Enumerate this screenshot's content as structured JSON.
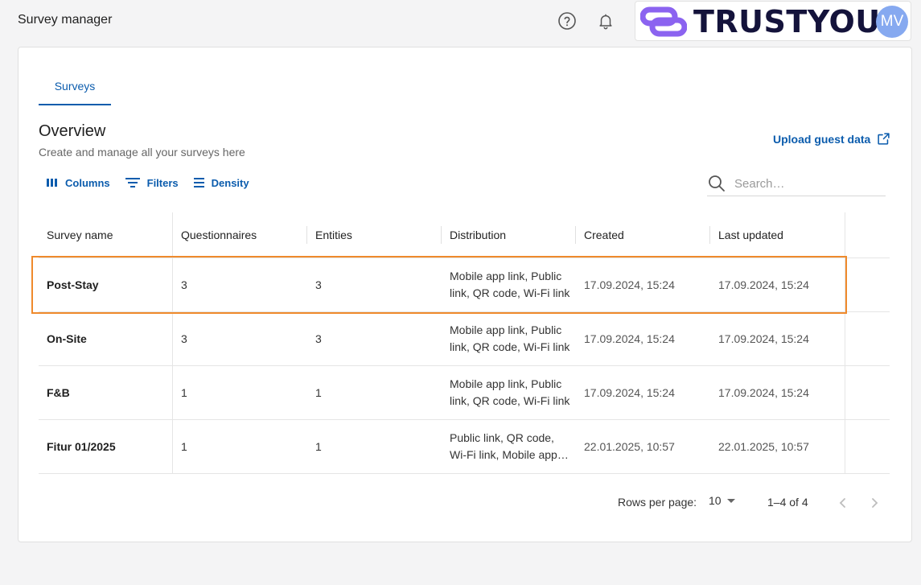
{
  "app": {
    "title": "Survey manager"
  },
  "brand": {
    "name": "TRUSTYOU",
    "avatar_initials": "MV",
    "color": "#8b63f0"
  },
  "tabs": [
    {
      "label": "Surveys",
      "active": true
    }
  ],
  "overview": {
    "title": "Overview",
    "subtitle": "Create and manage all your surveys here",
    "upload_link": "Upload guest data"
  },
  "toolbar": {
    "columns_label": "Columns",
    "filters_label": "Filters",
    "density_label": "Density"
  },
  "search": {
    "placeholder": "Search…"
  },
  "table": {
    "columns": [
      "Survey name",
      "Questionnaires",
      "Entities",
      "Distribution",
      "Created",
      "Last updated"
    ],
    "rows": [
      {
        "name": "Post-Stay",
        "questionnaires": "3",
        "entities": "3",
        "distribution_line1": "Mobile app link, Public",
        "distribution_line2": "link, QR code, Wi-Fi link",
        "created": "17.09.2024, 15:24",
        "updated": "17.09.2024, 15:24"
      },
      {
        "name": "On-Site",
        "questionnaires": "3",
        "entities": "3",
        "distribution_line1": "Mobile app link, Public",
        "distribution_line2": "link, QR code, Wi-Fi link",
        "created": "17.09.2024, 15:24",
        "updated": "17.09.2024, 15:24"
      },
      {
        "name": "F&B",
        "questionnaires": "1",
        "entities": "1",
        "distribution_line1": "Mobile app link, Public",
        "distribution_line2": "link, QR code, Wi-Fi link",
        "created": "17.09.2024, 15:24",
        "updated": "17.09.2024, 15:24"
      },
      {
        "name": "Fitur 01/2025",
        "questionnaires": "1",
        "entities": "1",
        "distribution_line1": "Public link, QR code,",
        "distribution_line2": "Wi-Fi link, Mobile app…",
        "created": "22.01.2025, 10:57",
        "updated": "22.01.2025, 10:57"
      }
    ]
  },
  "pagination": {
    "rows_per_page_label": "Rows per page:",
    "rows_per_page_value": "10",
    "range": "1–4 of 4"
  },
  "colors": {
    "accent": "#0b5cad",
    "highlight": "#ef8a2c"
  }
}
